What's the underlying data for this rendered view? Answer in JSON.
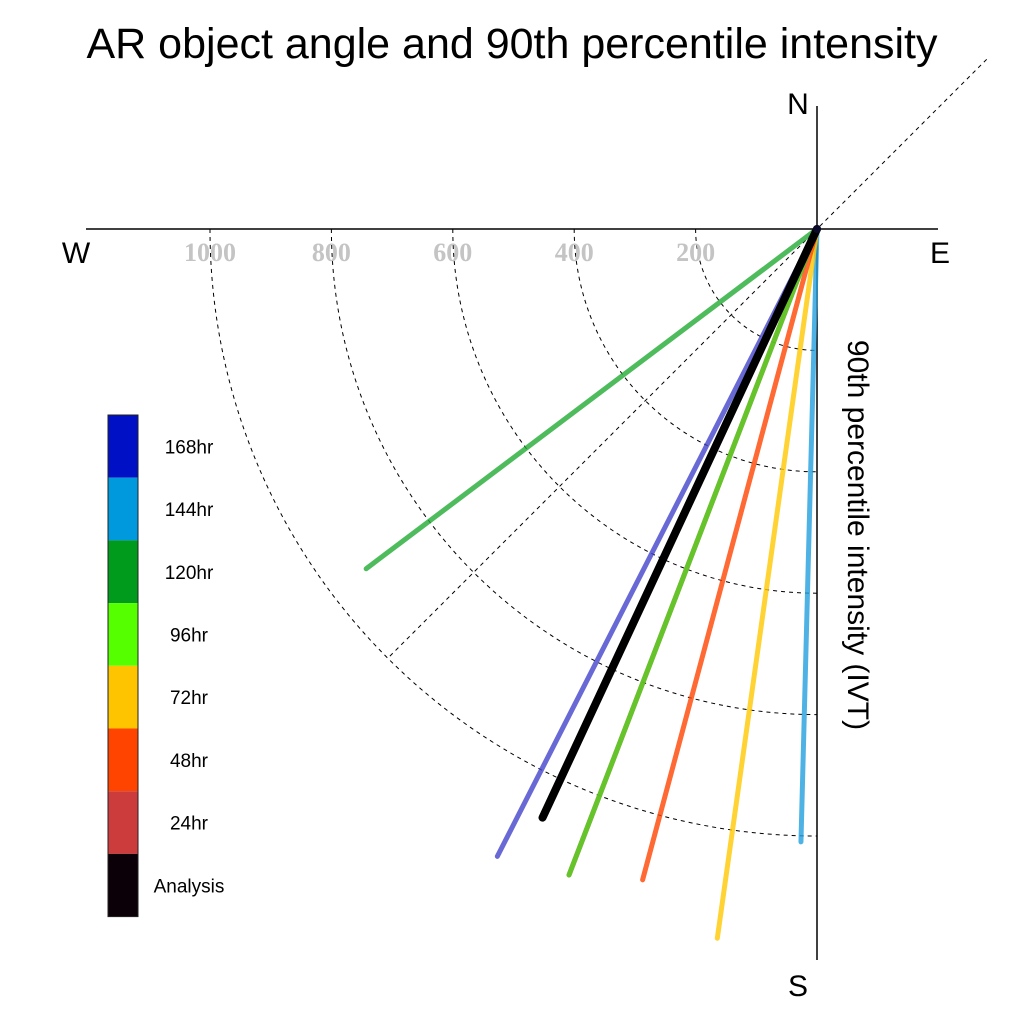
{
  "chart_data": {
    "type": "polar",
    "title": "AR object angle and 90th percentile intensity",
    "radial_label": "90th percentile intensity (IVT)",
    "compass": {
      "north": "N",
      "south": "S",
      "east": "E",
      "west": "W"
    },
    "r_ticks": [
      200,
      400,
      600,
      800,
      1000
    ],
    "r_tick_labels": [
      "200",
      "400",
      "600",
      "800",
      "1000"
    ],
    "grid": true,
    "legend_position": "left",
    "series": [
      {
        "name": "Analysis",
        "angle_deg_from_north_clockwise": 205.0,
        "intensity": 1070,
        "color": "#000000"
      },
      {
        "name": "24hr",
        "angle_deg_from_north_clockwise": 201.0,
        "intensity": 1140,
        "color": "#8b3a1e"
      },
      {
        "name": "48hr",
        "angle_deg_from_north_clockwise": 195.0,
        "intensity": 1110,
        "color": "#ff4400"
      },
      {
        "name": "72hr",
        "angle_deg_from_north_clockwise": 188.0,
        "intensity": 1180,
        "color": "#ffc800"
      },
      {
        "name": "96hr",
        "angle_deg_from_north_clockwise": 201.0,
        "intensity": 1140,
        "color": "#55dd22"
      },
      {
        "name": "120hr",
        "angle_deg_from_north_clockwise": 233.0,
        "intensity": 930,
        "color": "#22aa33"
      },
      {
        "name": "144hr",
        "angle_deg_from_north_clockwise": 181.5,
        "intensity": 1010,
        "color": "#22a0dd"
      },
      {
        "name": "168hr",
        "angle_deg_from_north_clockwise": 207.0,
        "intensity": 1160,
        "color": "#4444cc"
      }
    ],
    "legend": [
      {
        "label": "168hr",
        "color": "#0010c4"
      },
      {
        "label": "144hr",
        "color": "#0099dd"
      },
      {
        "label": "120hr",
        "color": "#009a1c"
      },
      {
        "label": "96hr",
        "color": "#55ff00"
      },
      {
        "label": "72hr",
        "color": "#ffc400"
      },
      {
        "label": "48hr",
        "color": "#ff4400"
      },
      {
        "label": "24hr",
        "color": "#cc3c3c"
      },
      {
        "label": "Analysis",
        "color": "#0c0008"
      }
    ]
  }
}
